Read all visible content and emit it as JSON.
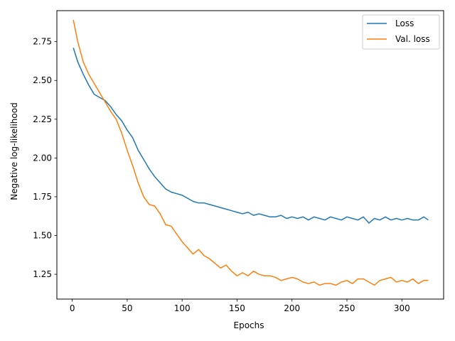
{
  "chart_data": {
    "type": "line",
    "xlabel": "Epochs",
    "ylabel": "Negative log-likelihood",
    "xlim": [
      -14,
      338
    ],
    "ylim": [
      1.09,
      2.95
    ],
    "xticks": [
      0,
      50,
      100,
      150,
      200,
      250,
      300
    ],
    "yticks": [
      1.25,
      1.5,
      1.75,
      2.0,
      2.25,
      2.5,
      2.75
    ],
    "ytick_labels": [
      "1.25",
      "1.50",
      "1.75",
      "2.00",
      "2.25",
      "2.50",
      "2.75"
    ],
    "legend_position": "top-right",
    "grid": false,
    "series": [
      {
        "name": "Loss",
        "color": "#1f77b4",
        "x": [
          1,
          5,
          10,
          15,
          20,
          25,
          30,
          35,
          40,
          45,
          50,
          55,
          60,
          65,
          70,
          75,
          80,
          85,
          90,
          95,
          100,
          105,
          110,
          115,
          120,
          125,
          130,
          135,
          140,
          145,
          150,
          155,
          160,
          165,
          170,
          175,
          180,
          185,
          190,
          195,
          200,
          205,
          210,
          215,
          220,
          225,
          230,
          235,
          240,
          245,
          250,
          255,
          260,
          265,
          270,
          275,
          280,
          285,
          290,
          295,
          300,
          305,
          310,
          315,
          320,
          324
        ],
        "y": [
          2.71,
          2.62,
          2.54,
          2.47,
          2.41,
          2.39,
          2.37,
          2.33,
          2.28,
          2.24,
          2.18,
          2.13,
          2.05,
          1.99,
          1.93,
          1.88,
          1.84,
          1.8,
          1.78,
          1.77,
          1.76,
          1.74,
          1.72,
          1.71,
          1.71,
          1.7,
          1.69,
          1.68,
          1.67,
          1.66,
          1.65,
          1.64,
          1.65,
          1.63,
          1.64,
          1.63,
          1.62,
          1.62,
          1.63,
          1.61,
          1.62,
          1.61,
          1.62,
          1.6,
          1.62,
          1.61,
          1.6,
          1.62,
          1.61,
          1.6,
          1.62,
          1.61,
          1.6,
          1.62,
          1.58,
          1.61,
          1.6,
          1.62,
          1.6,
          1.61,
          1.6,
          1.61,
          1.6,
          1.6,
          1.62,
          1.6
        ]
      },
      {
        "name": "Val. loss",
        "color": "#ff7f0e",
        "x": [
          1,
          5,
          10,
          15,
          20,
          25,
          30,
          35,
          40,
          45,
          50,
          55,
          60,
          65,
          70,
          75,
          80,
          85,
          90,
          95,
          100,
          105,
          110,
          115,
          120,
          125,
          130,
          135,
          140,
          145,
          150,
          155,
          160,
          165,
          170,
          175,
          180,
          185,
          190,
          195,
          200,
          205,
          210,
          215,
          220,
          225,
          230,
          235,
          240,
          245,
          250,
          255,
          260,
          265,
          270,
          275,
          280,
          285,
          290,
          295,
          300,
          305,
          310,
          315,
          320,
          324
        ],
        "y": [
          2.89,
          2.75,
          2.62,
          2.54,
          2.48,
          2.42,
          2.36,
          2.3,
          2.25,
          2.16,
          2.05,
          1.95,
          1.84,
          1.75,
          1.7,
          1.69,
          1.64,
          1.57,
          1.56,
          1.51,
          1.46,
          1.42,
          1.38,
          1.41,
          1.37,
          1.35,
          1.32,
          1.29,
          1.31,
          1.27,
          1.24,
          1.26,
          1.24,
          1.27,
          1.25,
          1.24,
          1.24,
          1.23,
          1.21,
          1.22,
          1.23,
          1.22,
          1.2,
          1.19,
          1.2,
          1.18,
          1.19,
          1.19,
          1.18,
          1.2,
          1.21,
          1.19,
          1.22,
          1.22,
          1.2,
          1.18,
          1.21,
          1.22,
          1.23,
          1.2,
          1.21,
          1.2,
          1.22,
          1.19,
          1.21,
          1.21
        ]
      }
    ]
  }
}
